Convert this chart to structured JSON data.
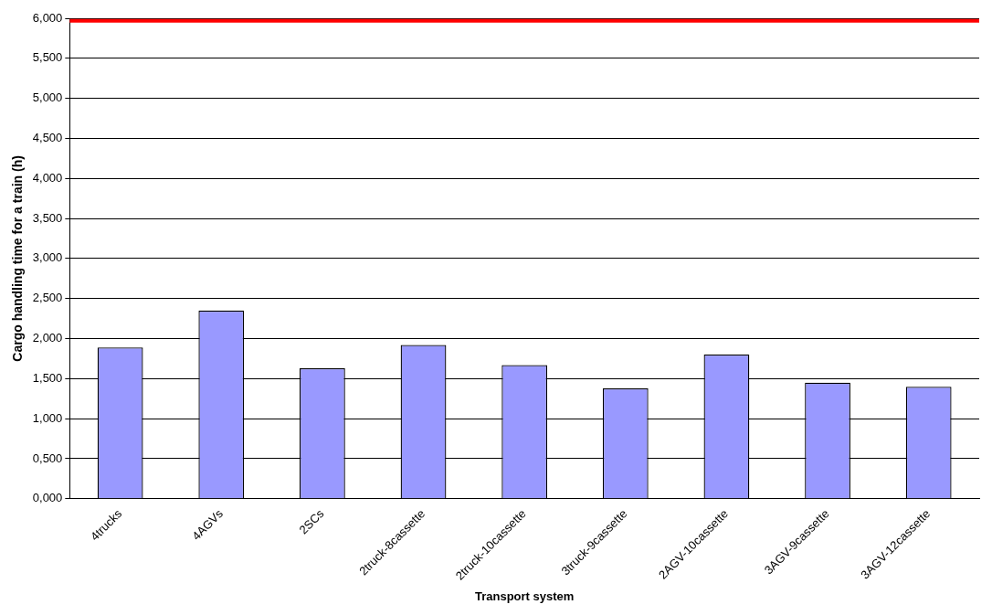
{
  "chart_data": {
    "type": "bar",
    "xlabel": "Transport system",
    "ylabel": "Cargo handling time for a train (h)",
    "categories": [
      "4trucks",
      "4AGVs",
      "2SCs",
      "2truck-8cassette",
      "2truck-10cassette",
      "3truck-9cassette",
      "2AGV-10cassette",
      "3AGV-9cassette",
      "3AGV-12cassette"
    ],
    "values": [
      1.89,
      2.35,
      1.63,
      1.92,
      1.67,
      1.38,
      1.8,
      1.45,
      1.4
    ],
    "color": "#9999ff",
    "ylim": [
      0,
      6
    ],
    "yticks": [
      {
        "value": 0,
        "label": "0,000"
      },
      {
        "value": 0.5,
        "label": "0,500"
      },
      {
        "value": 1,
        "label": "1,000"
      },
      {
        "value": 1.5,
        "label": "1,500"
      },
      {
        "value": 2,
        "label": "2,000"
      },
      {
        "value": 2.5,
        "label": "2,500"
      },
      {
        "value": 3,
        "label": "3,000"
      },
      {
        "value": 3.5,
        "label": "3,500"
      },
      {
        "value": 4,
        "label": "4,000"
      },
      {
        "value": 4.5,
        "label": "4,500"
      },
      {
        "value": 5,
        "label": "5,000"
      },
      {
        "value": 5.5,
        "label": "5,500"
      },
      {
        "value": 6,
        "label": "6,000"
      }
    ],
    "grid": "y",
    "legend": false,
    "ref_lines": [
      {
        "axis": "y",
        "value": 5.97,
        "color": "#ff0000"
      }
    ]
  }
}
